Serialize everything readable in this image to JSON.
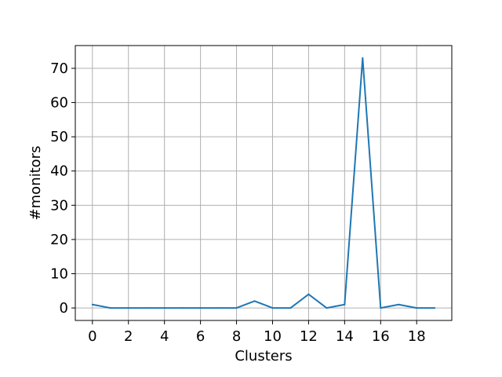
{
  "chart_data": {
    "type": "line",
    "title": "",
    "xlabel": "Clusters",
    "ylabel": "#monitors",
    "x": [
      0,
      1,
      2,
      3,
      4,
      5,
      6,
      7,
      8,
      9,
      10,
      11,
      12,
      13,
      14,
      15,
      16,
      17,
      18,
      19
    ],
    "series": [
      {
        "values": [
          1,
          0,
          0,
          0,
          0,
          0,
          0,
          0,
          0,
          2,
          0,
          0,
          4,
          0,
          1,
          73,
          0,
          1,
          0,
          0
        ]
      }
    ],
    "xlim": [
      -0.95,
      19.95
    ],
    "ylim": [
      -3.65,
      76.65
    ],
    "xticks": [
      0,
      2,
      4,
      6,
      8,
      10,
      12,
      14,
      16,
      18
    ],
    "yticks": [
      0,
      10,
      20,
      30,
      40,
      50,
      60,
      70
    ],
    "grid": true,
    "colors": {
      "line": "#1f77b4",
      "grid": "#b0b0b0",
      "axis": "#000000"
    }
  }
}
